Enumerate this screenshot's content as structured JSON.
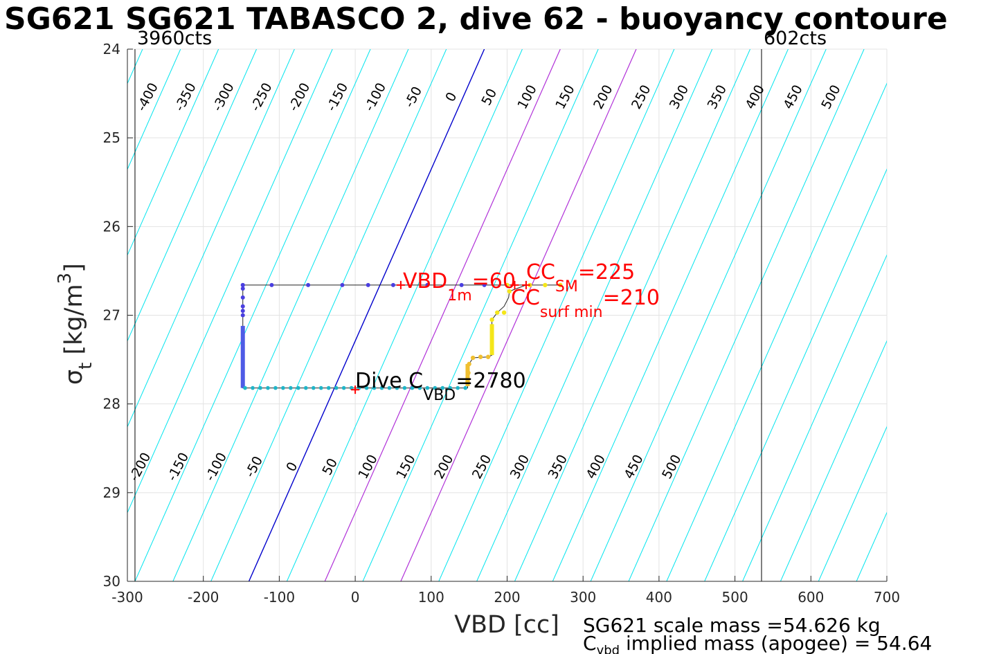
{
  "title": "SG621 SG621 TABASCO 2, dive 62 - buoyancy contoure",
  "limits": {
    "left_label": "3960cts",
    "right_label": "602cts",
    "left_vbd": -290,
    "right_vbd": 535
  },
  "footer": {
    "line1": "SG621 scale mass =54.626 kg",
    "line2_sym": "C",
    "line2_sub": "vbd",
    "line2_rest": " implied mass (apogee) = 54.64"
  },
  "chart_data": {
    "type": "scatter",
    "xlabel": "VBD [cc]",
    "ylabel_sym": "σ",
    "ylabel_sub": "t",
    "ylabel_rest": " [kg/m",
    "ylabel_sup": "3",
    "ylabel_end": "]",
    "xlim": [
      -300,
      700
    ],
    "ylim": [
      24,
      30
    ],
    "y_reversed": true,
    "grid": true,
    "xticks": [
      "-300",
      "-200",
      "-100",
      "0",
      "100",
      "200",
      "300",
      "400",
      "500",
      "600",
      "700"
    ],
    "yticks": [
      "24",
      "25",
      "26",
      "27",
      "28",
      "29",
      "30"
    ],
    "contours": {
      "slope_cc_per_kgm3": -46.8,
      "levels": [
        -400,
        -350,
        -300,
        -250,
        -200,
        -150,
        -100,
        -50,
        0,
        50,
        100,
        150,
        200,
        250,
        300,
        350,
        400,
        450,
        500,
        550,
        600,
        650,
        700,
        750,
        800,
        850
      ],
      "top_labels": [
        "-400",
        "-350",
        "-300",
        "-250",
        "-200",
        "-150",
        "-100",
        "-50",
        "0",
        "50",
        "100",
        "150",
        "200",
        "250",
        "300",
        "350",
        "400",
        "450",
        "500"
      ],
      "bottom_labels": [
        "-200",
        "-150",
        "-100",
        "-50",
        "0",
        "50",
        "100",
        "150",
        "200",
        "250",
        "300",
        "350",
        "400",
        "450",
        "500"
      ],
      "colors": {
        "regular": "#00e5ee",
        "zero": "#0000cc",
        "highlight": "#b030d8"
      },
      "highlight_levels": [
        100,
        200
      ]
    },
    "dive_path": [
      [
        -148,
        26.66
      ],
      [
        -110,
        26.66
      ],
      [
        -62,
        26.66
      ],
      [
        -17,
        26.66
      ],
      [
        17,
        26.66
      ],
      [
        50,
        26.66
      ],
      [
        95,
        26.66
      ],
      [
        140,
        26.66
      ],
      [
        170,
        26.66
      ],
      [
        200,
        26.66
      ],
      [
        230,
        26.66
      ],
      [
        250,
        26.66
      ],
      [
        270,
        26.66
      ],
      [
        225,
        26.66
      ],
      [
        203,
        26.73
      ],
      [
        202,
        26.8
      ],
      [
        196,
        26.9
      ],
      [
        187,
        26.97
      ],
      [
        180,
        27.05
      ],
      [
        180,
        27.25
      ],
      [
        180,
        27.45
      ],
      [
        175,
        27.47
      ],
      [
        155,
        27.48
      ],
      [
        150,
        27.55
      ],
      [
        148,
        27.7
      ],
      [
        148,
        27.82
      ],
      [
        120,
        27.82
      ],
      [
        80,
        27.82
      ],
      [
        40,
        27.82
      ],
      [
        0,
        27.82
      ],
      [
        -40,
        27.82
      ],
      [
        -80,
        27.82
      ],
      [
        -120,
        27.82
      ],
      [
        -148,
        27.82
      ],
      [
        -148,
        27.5
      ],
      [
        -148,
        27.15
      ],
      [
        -148,
        26.9
      ],
      [
        -148,
        26.66
      ]
    ],
    "markers": {
      "dive_climb_upper": {
        "color": "#4a3fe0",
        "vbd": [
          -148,
          -110,
          -62,
          -17,
          17,
          50,
          95,
          140,
          170
        ],
        "sigma": 26.66
      },
      "descent_points": {
        "color": "#4a3fe0",
        "vbd": -148,
        "sigma": [
          26.66,
          26.7,
          26.8,
          26.9,
          26.95,
          27.0
        ]
      },
      "bottom_row": {
        "color": "#1fb5c8",
        "vbd_from": -145,
        "vbd_to": 148,
        "step": 10,
        "sigma": 27.82
      },
      "yellow_points": {
        "color": "#f4e61a",
        "pts": [
          [
            200,
            26.66
          ],
          [
            230,
            26.66
          ],
          [
            250,
            26.66
          ],
          [
            270,
            26.66
          ],
          [
            203,
            26.73
          ],
          [
            196,
            26.97
          ],
          [
            187,
            26.97
          ],
          [
            180,
            27.05
          ]
        ]
      },
      "orange_points": {
        "color": "#f0bf30",
        "pts": [
          [
            175,
            27.47
          ],
          [
            165,
            27.47
          ],
          [
            155,
            27.48
          ],
          [
            150,
            27.55
          ],
          [
            149,
            27.65
          ],
          [
            148,
            27.75
          ]
        ]
      }
    },
    "red_marks": [
      {
        "vbd": 0,
        "sigma": 27.84
      },
      {
        "vbd": 60,
        "sigma": 26.66
      },
      {
        "vbd": 225,
        "sigma": 26.66
      },
      {
        "vbd": 210,
        "sigma": 26.66
      }
    ],
    "annotations": {
      "vbd1m": {
        "pre": "VBD",
        "sub": "1m",
        "post": "=60",
        "color": "#ff0000"
      },
      "ccsm": {
        "pre": "CC",
        "sub": "SM",
        "post": "=225",
        "color": "#ff0000"
      },
      "ccsurf": {
        "pre": "CC",
        "sub": "surf min",
        "post": "=210",
        "color": "#ff0000"
      },
      "dive": {
        "pre": "Dive C",
        "sub": "VBD",
        "post": "=2780",
        "color": "#000000"
      }
    }
  }
}
